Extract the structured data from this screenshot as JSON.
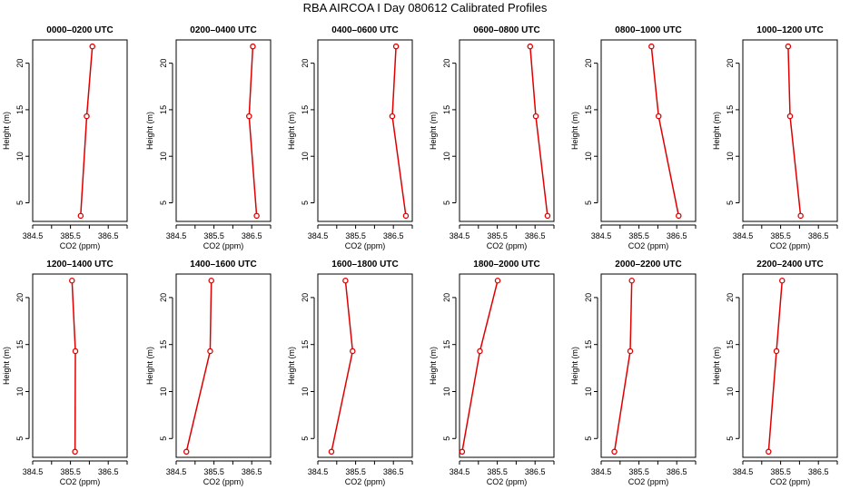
{
  "figure": {
    "title": "RBA AIRCOA I  Day 080612  Calibrated Profiles"
  },
  "style": {
    "line_color": "#e00000",
    "axis_color": "#000000",
    "background": "#ffffff"
  },
  "chart_data": [
    {
      "type": "line",
      "title": "0000–0200 UTC",
      "xlabel": "CO2 (ppm)",
      "ylabel": "Height (m)",
      "xlim": [
        384.5,
        387.0
      ],
      "ylim": [
        3,
        22.5
      ],
      "xticks": [
        "384.5",
        "385.5",
        "386.5"
      ],
      "yticks": [
        "5",
        "10",
        "15",
        "20"
      ],
      "series": [
        {
          "x": [
            385.77,
            385.93,
            386.08
          ],
          "y": [
            3.6,
            14.3,
            21.8
          ]
        }
      ]
    },
    {
      "type": "line",
      "title": "0200–0400 UTC",
      "xlabel": "CO2 (ppm)",
      "ylabel": "Height (m)",
      "xlim": [
        384.5,
        387.0
      ],
      "ylim": [
        3,
        22.5
      ],
      "xticks": [
        "384.5",
        "385.5",
        "386.5"
      ],
      "yticks": [
        "5",
        "10",
        "15",
        "20"
      ],
      "series": [
        {
          "x": [
            386.63,
            386.43,
            386.53
          ],
          "y": [
            3.6,
            14.3,
            21.8
          ]
        }
      ]
    },
    {
      "type": "line",
      "title": "0400–0600 UTC",
      "xlabel": "CO2 (ppm)",
      "ylabel": "Height (m)",
      "xlim": [
        384.5,
        387.0
      ],
      "ylim": [
        3,
        22.5
      ],
      "xticks": [
        "384.5",
        "385.5",
        "386.5"
      ],
      "yticks": [
        "5",
        "10",
        "15",
        "20"
      ],
      "series": [
        {
          "x": [
            386.83,
            386.47,
            386.57
          ],
          "y": [
            3.6,
            14.3,
            21.8
          ]
        }
      ]
    },
    {
      "type": "line",
      "title": "0600–0800 UTC",
      "xlabel": "CO2 (ppm)",
      "ylabel": "Height (m)",
      "xlim": [
        384.5,
        387.0
      ],
      "ylim": [
        3,
        22.5
      ],
      "xticks": [
        "384.5",
        "385.5",
        "386.5"
      ],
      "yticks": [
        "5",
        "10",
        "15",
        "20"
      ],
      "series": [
        {
          "x": [
            386.83,
            386.52,
            386.37
          ],
          "y": [
            3.6,
            14.3,
            21.8
          ]
        }
      ]
    },
    {
      "type": "line",
      "title": "0800–1000 UTC",
      "xlabel": "CO2 (ppm)",
      "ylabel": "Height (m)",
      "xlim": [
        384.5,
        387.0
      ],
      "ylim": [
        3,
        22.5
      ],
      "xticks": [
        "384.5",
        "385.5",
        "386.5"
      ],
      "yticks": [
        "5",
        "10",
        "15",
        "20"
      ],
      "series": [
        {
          "x": [
            386.55,
            386.02,
            385.83
          ],
          "y": [
            3.6,
            14.3,
            21.8
          ]
        }
      ]
    },
    {
      "type": "line",
      "title": "1000–1200 UTC",
      "xlabel": "CO2 (ppm)",
      "ylabel": "Height (m)",
      "xlim": [
        384.5,
        387.0
      ],
      "ylim": [
        3,
        22.5
      ],
      "xticks": [
        "384.5",
        "385.5",
        "386.5"
      ],
      "yticks": [
        "5",
        "10",
        "15",
        "20"
      ],
      "series": [
        {
          "x": [
            386.03,
            385.75,
            385.7
          ],
          "y": [
            3.6,
            14.3,
            21.8
          ]
        }
      ]
    },
    {
      "type": "line",
      "title": "1200–1400 UTC",
      "xlabel": "CO2 (ppm)",
      "ylabel": "Height (m)",
      "xlim": [
        384.5,
        387.0
      ],
      "ylim": [
        3,
        22.5
      ],
      "xticks": [
        "384.5",
        "385.5",
        "386.5"
      ],
      "yticks": [
        "5",
        "10",
        "15",
        "20"
      ],
      "series": [
        {
          "x": [
            385.62,
            385.63,
            385.54
          ],
          "y": [
            3.6,
            14.3,
            21.8
          ]
        }
      ]
    },
    {
      "type": "line",
      "title": "1400–1600 UTC",
      "xlabel": "CO2 (ppm)",
      "ylabel": "Height (m)",
      "xlim": [
        384.5,
        387.0
      ],
      "ylim": [
        3,
        22.5
      ],
      "xticks": [
        "384.5",
        "385.5",
        "386.5"
      ],
      "yticks": [
        "5",
        "10",
        "15",
        "20"
      ],
      "series": [
        {
          "x": [
            384.77,
            385.4,
            385.43
          ],
          "y": [
            3.6,
            14.3,
            21.8
          ]
        }
      ]
    },
    {
      "type": "line",
      "title": "1600–1800 UTC",
      "xlabel": "CO2 (ppm)",
      "ylabel": "Height (m)",
      "xlim": [
        384.5,
        387.0
      ],
      "ylim": [
        3,
        22.5
      ],
      "xticks": [
        "384.5",
        "385.5",
        "386.5"
      ],
      "yticks": [
        "5",
        "10",
        "15",
        "20"
      ],
      "series": [
        {
          "x": [
            384.86,
            385.42,
            385.23
          ],
          "y": [
            3.6,
            14.3,
            21.8
          ]
        }
      ]
    },
    {
      "type": "line",
      "title": "1800–2000 UTC",
      "xlabel": "CO2 (ppm)",
      "ylabel": "Height (m)",
      "xlim": [
        384.5,
        387.0
      ],
      "ylim": [
        3,
        22.5
      ],
      "xticks": [
        "384.5",
        "385.5",
        "386.5"
      ],
      "yticks": [
        "5",
        "10",
        "15",
        "20"
      ],
      "series": [
        {
          "x": [
            384.57,
            385.04,
            385.51
          ],
          "y": [
            3.6,
            14.3,
            21.8
          ]
        }
      ]
    },
    {
      "type": "line",
      "title": "2000–2200 UTC",
      "xlabel": "CO2 (ppm)",
      "ylabel": "Height (m)",
      "xlim": [
        384.5,
        387.0
      ],
      "ylim": [
        3,
        22.5
      ],
      "xticks": [
        "384.5",
        "385.5",
        "386.5"
      ],
      "yticks": [
        "5",
        "10",
        "15",
        "20"
      ],
      "series": [
        {
          "x": [
            384.85,
            385.27,
            385.31
          ],
          "y": [
            3.6,
            14.3,
            21.8
          ]
        }
      ]
    },
    {
      "type": "line",
      "title": "2200–2400 UTC",
      "xlabel": "CO2 (ppm)",
      "ylabel": "Height (m)",
      "xlim": [
        384.5,
        387.0
      ],
      "ylim": [
        3,
        22.5
      ],
      "xticks": [
        "384.5",
        "385.5",
        "386.5"
      ],
      "yticks": [
        "5",
        "10",
        "15",
        "20"
      ],
      "series": [
        {
          "x": [
            385.18,
            385.39,
            385.54
          ],
          "y": [
            3.6,
            14.3,
            21.8
          ]
        }
      ]
    }
  ]
}
